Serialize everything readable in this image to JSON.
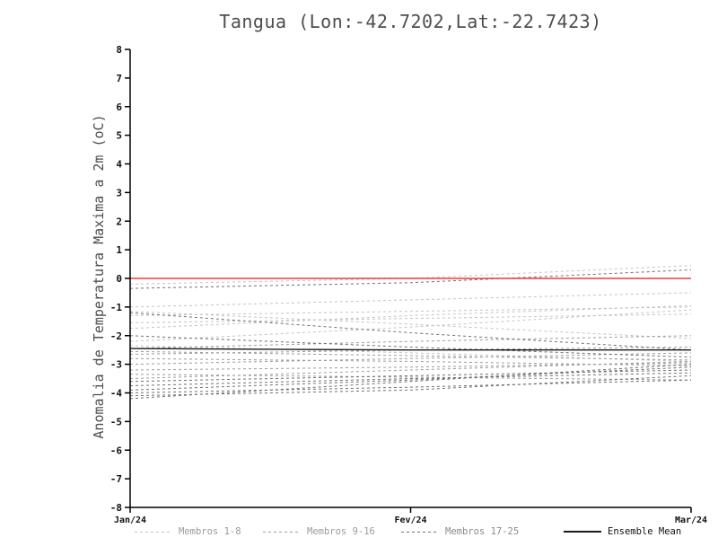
{
  "chart_data": {
    "type": "line",
    "title": "Tangua (Lon:-42.7202,Lat:-22.7423)",
    "ylabel": "Anomalia de Temperatura Maxima a 2m (oC)",
    "xlabel": "",
    "x_categories": [
      "Jan/24",
      "Fev/24",
      "Mar/24"
    ],
    "ylim": [
      -8,
      8
    ],
    "y_ticks": [
      8,
      7,
      6,
      5,
      4,
      3,
      2,
      1,
      0,
      -1,
      -2,
      -3,
      -4,
      -5,
      -6,
      -7,
      -8
    ],
    "grid": false,
    "legend_position": "bottom",
    "zero_line": {
      "name": "zero-anomaly",
      "color": "#f23b3b",
      "style": "solid",
      "values": [
        0,
        0,
        0
      ]
    },
    "ensemble_mean": {
      "name": "Ensemble Mean",
      "color": "#1a1a1a",
      "style": "solid",
      "values": [
        -2.45,
        -2.5,
        -2.5
      ]
    },
    "member_groups": [
      {
        "name": "Membros 1-8",
        "color": "#c4c4c4",
        "style": "dashed",
        "members": [
          [
            -0.2,
            0.0,
            0.45
          ],
          [
            -1.0,
            -0.75,
            -0.5
          ],
          [
            -1.15,
            -1.6,
            -2.1
          ],
          [
            -1.3,
            -1.15,
            -1.0
          ],
          [
            -1.55,
            -1.4,
            -1.25
          ],
          [
            -1.75,
            -1.3,
            -0.95
          ],
          [
            -2.2,
            -1.7,
            -1.1
          ],
          [
            -2.35,
            -2.6,
            -2.9
          ]
        ]
      },
      {
        "name": "Membros 9-16",
        "color": "#9c9c9c",
        "style": "dashed",
        "members": [
          [
            -2.45,
            -2.2,
            -2.0
          ],
          [
            -2.55,
            -2.7,
            -2.85
          ],
          [
            -2.65,
            -2.5,
            -2.4
          ],
          [
            -2.8,
            -2.9,
            -3.05
          ],
          [
            -3.0,
            -2.8,
            -2.6
          ],
          [
            -3.2,
            -3.1,
            -2.95
          ],
          [
            -3.35,
            -3.45,
            -3.55
          ],
          [
            -3.5,
            -3.2,
            -2.9
          ]
        ]
      },
      {
        "name": "Membros 17-25",
        "color": "#707070",
        "style": "dashed",
        "members": [
          [
            -3.6,
            -3.4,
            -3.2
          ],
          [
            -3.75,
            -3.5,
            -3.3
          ],
          [
            -3.9,
            -3.55,
            -3.1
          ],
          [
            -4.0,
            -3.8,
            -3.55
          ],
          [
            -4.1,
            -3.9,
            -3.4
          ],
          [
            -4.2,
            -3.6,
            -3.0
          ],
          [
            -2.0,
            -2.4,
            -2.75
          ],
          [
            -1.2,
            -1.9,
            -2.5
          ],
          [
            -0.35,
            -0.15,
            0.3
          ]
        ]
      }
    ],
    "legend": [
      {
        "label": "Membros 1-8",
        "color": "#c4c4c4",
        "dashed": true,
        "label_color": "#9a9a9a"
      },
      {
        "label": "Membros 9-16",
        "color": "#9c9c9c",
        "dashed": true,
        "label_color": "#9a9a9a"
      },
      {
        "label": "Membros 17-25",
        "color": "#707070",
        "dashed": true,
        "label_color": "#8a8a8a"
      },
      {
        "label": "Ensemble Mean",
        "color": "#1a1a1a",
        "dashed": false,
        "label_color": "#111111"
      }
    ]
  }
}
